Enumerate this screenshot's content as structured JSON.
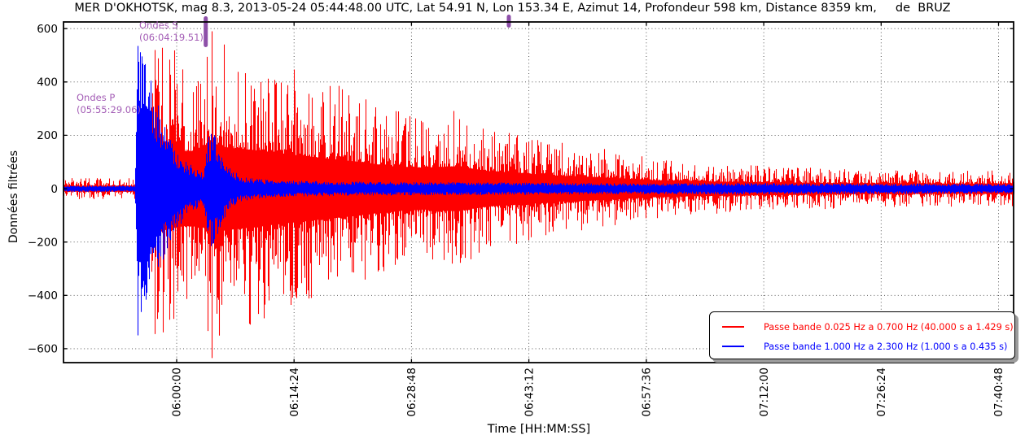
{
  "title": "MER D'OKHOTSK, mag 8.3, 2013-05-24 05:44:48.00 UTC, Lat 54.91 N, Lon 153.34 E, Azimut 14, Profondeur 598 km, Distance 8359 km,     de  BRUZ",
  "axes": {
    "ylabel": "Données filtrées",
    "xlabel": "Time [HH:MM:SS]",
    "yticks": [
      600,
      400,
      200,
      0,
      -200,
      -400,
      -600
    ],
    "xticks": [
      "06:00:00",
      "06:14:24",
      "06:28:48",
      "06:43:12",
      "06:57:36",
      "07:12:00",
      "07:26:24",
      "07:40:48"
    ]
  },
  "annotations": {
    "p": {
      "label": "Ondes P",
      "time": "(05:55:29.06)"
    },
    "s": {
      "label": "Ondes S",
      "time": "(06:04:19.51)"
    }
  },
  "legend": {
    "entries": [
      {
        "label": "Passe bande 0.025 Hz a 0.700 Hz (40.000 s a 1.429 s)",
        "color": "#ff0000"
      },
      {
        "label": "Passe bande 1.000 Hz a 2.300 Hz (1.000 s a 0.435 s)",
        "color": "#0000ff"
      }
    ]
  },
  "colors": {
    "trace_red": "#ff0000",
    "trace_blue": "#0000ff",
    "annotation": "#a35cb5",
    "marker": "#8d4fa8",
    "grid": "#444444",
    "frame": "#000000"
  },
  "chart_data": {
    "type": "line",
    "subtype": "seismogram (two band-pass filtered traces, amplitude envelopes)",
    "title": "MER D'OKHOTSK, mag 8.3, 2013-05-24 05:44:48.00 UTC, Lat 54.91 N, Lon 153.34 E, Azimut 14, Profondeur 598 km, Distance 8359 km, de BRUZ",
    "event": {
      "name": "MER D'OKHOTSK",
      "magnitude": 8.3,
      "origin_time_utc": "2013-05-24 05:44:48.00",
      "lat": "54.91 N",
      "lon": "153.34 E",
      "azimut": 14,
      "profondeur_km": 598,
      "distance_km": 8359,
      "station": "BRUZ"
    },
    "xlabel": "Time [HH:MM:SS]",
    "ylabel": "Données filtrées",
    "x_start": "05:46:07",
    "x_end": "07:42:39",
    "xtick_interval_s": 864,
    "ylim": [
      -652,
      625
    ],
    "grid": "dotted",
    "legend_position": "lower right",
    "picks": [
      {
        "phase": "Ondes P",
        "time": "05:55:29.06"
      },
      {
        "phase": "Ondes S",
        "time": "06:04:19.51"
      }
    ],
    "series": [
      {
        "name": "Passe bande 0.025 Hz a 0.700 Hz (40.000 s a 1.429 s)",
        "color": "#ff0000",
        "envelope_t_amp": [
          [
            0,
            40
          ],
          [
            520,
            40
          ],
          [
            555,
            90
          ],
          [
            590,
            210
          ],
          [
            640,
            420
          ],
          [
            670,
            530
          ],
          [
            760,
            545
          ],
          [
            880,
            500
          ],
          [
            1020,
            510
          ],
          [
            1090,
            630
          ],
          [
            1150,
            570
          ],
          [
            1210,
            550
          ],
          [
            1330,
            530
          ],
          [
            1510,
            490
          ],
          [
            1700,
            450
          ],
          [
            1930,
            405
          ],
          [
            2170,
            360
          ],
          [
            2410,
            300
          ],
          [
            2650,
            280
          ],
          [
            2890,
            300
          ],
          [
            3130,
            235
          ],
          [
            3370,
            210
          ],
          [
            3610,
            175
          ],
          [
            3850,
            160
          ],
          [
            4090,
            140
          ],
          [
            4330,
            115
          ],
          [
            4630,
            100
          ],
          [
            4930,
            92
          ],
          [
            5220,
            85
          ],
          [
            5520,
            78
          ],
          [
            5880,
            72
          ],
          [
            6240,
            70
          ],
          [
            6600,
            68
          ],
          [
            6992,
            70
          ]
        ],
        "forced_peaks": [
          [
            670,
            520,
            545
          ],
          [
            1090,
            590,
            635
          ]
        ]
      },
      {
        "name": "Passe bande 1.000 Hz a 2.300 Hz (1.000 s a 0.435 s)",
        "color": "#0000ff",
        "envelope_t_amp": [
          [
            0,
            12
          ],
          [
            525,
            12
          ],
          [
            543,
            545
          ],
          [
            590,
            505
          ],
          [
            640,
            425
          ],
          [
            700,
            310
          ],
          [
            760,
            230
          ],
          [
            820,
            160
          ],
          [
            900,
            110
          ],
          [
            970,
            80
          ],
          [
            1030,
            62
          ],
          [
            1065,
            200
          ],
          [
            1105,
            215
          ],
          [
            1160,
            130
          ],
          [
            1220,
            78
          ],
          [
            1300,
            48
          ],
          [
            1450,
            36
          ],
          [
            1690,
            30
          ],
          [
            2050,
            27
          ],
          [
            2530,
            25
          ],
          [
            3130,
            24
          ],
          [
            3730,
            22
          ],
          [
            4330,
            20
          ],
          [
            4930,
            22
          ],
          [
            5520,
            20
          ],
          [
            6120,
            20
          ],
          [
            6720,
            18
          ],
          [
            6992,
            18
          ]
        ],
        "forced_peaks": [
          [
            545,
            535,
            550
          ],
          [
            1085,
            205,
            215
          ]
        ]
      }
    ]
  }
}
